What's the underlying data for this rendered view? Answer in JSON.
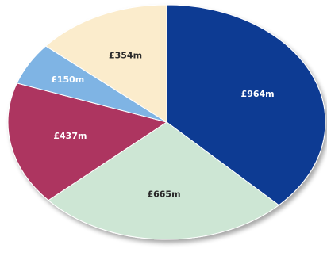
{
  "chart_data": {
    "type": "pie",
    "title": "",
    "start_angle_deg": 0,
    "direction": "clockwise",
    "slices": [
      {
        "label": "£964m",
        "value": 964,
        "color": "#103a93",
        "label_color": "#ffffff"
      },
      {
        "label": "£665m",
        "value": 665,
        "color": "#cde6d4",
        "label_color": "#2a2a2a"
      },
      {
        "label": "£437m",
        "value": 437,
        "color": "#ad3660",
        "label_color": "#ffffff"
      },
      {
        "label": "£150m",
        "value": 150,
        "color": "#7fb4e4",
        "label_color": "#ffffff"
      },
      {
        "label": "£354m",
        "value": 354,
        "color": "#fbeccc",
        "label_color": "#2a2a2a"
      }
    ]
  }
}
